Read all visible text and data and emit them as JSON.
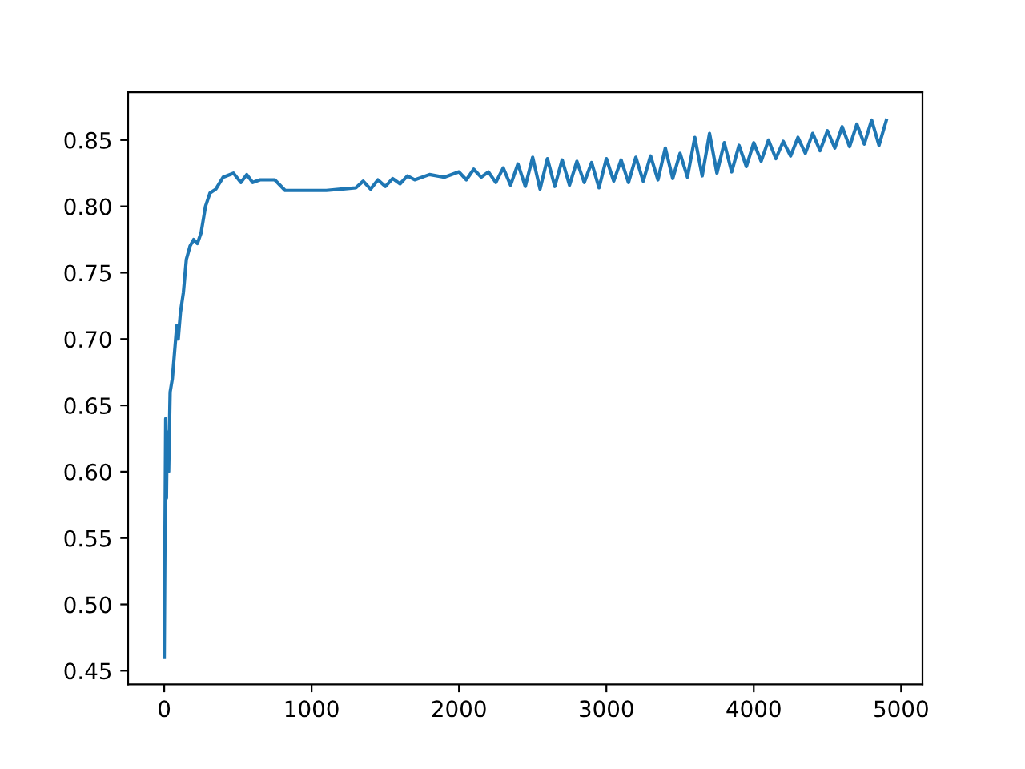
{
  "chart_data": {
    "type": "line",
    "series": [
      {
        "color": "#1f77b4",
        "x": [
          0,
          5,
          10,
          15,
          20,
          30,
          40,
          55,
          70,
          85,
          95,
          110,
          130,
          150,
          175,
          200,
          225,
          250,
          280,
          310,
          350,
          400,
          470,
          520,
          560,
          600,
          650,
          750,
          820,
          1000,
          1100,
          1200,
          1300,
          1350,
          1400,
          1450,
          1500,
          1550,
          1600,
          1650,
          1700,
          1800,
          1900,
          2000,
          2050,
          2100,
          2150,
          2200,
          2250,
          2300,
          2350,
          2400,
          2450,
          2500,
          2550,
          2600,
          2650,
          2700,
          2750,
          2800,
          2850,
          2900,
          2950,
          3000,
          3050,
          3100,
          3150,
          3200,
          3250,
          3300,
          3350,
          3400,
          3450,
          3500,
          3550,
          3600,
          3650,
          3700,
          3750,
          3800,
          3850,
          3900,
          3950,
          4000,
          4050,
          4100,
          4150,
          4200,
          4250,
          4300,
          4350,
          4400,
          4450,
          4500,
          4550,
          4600,
          4650,
          4700,
          4750,
          4800,
          4850,
          4900
        ],
        "values": [
          0.46,
          0.55,
          0.64,
          0.58,
          0.63,
          0.6,
          0.66,
          0.67,
          0.69,
          0.71,
          0.7,
          0.72,
          0.735,
          0.76,
          0.77,
          0.775,
          0.772,
          0.78,
          0.8,
          0.81,
          0.813,
          0.822,
          0.825,
          0.818,
          0.824,
          0.818,
          0.82,
          0.82,
          0.812,
          0.812,
          0.812,
          0.813,
          0.814,
          0.819,
          0.813,
          0.82,
          0.815,
          0.821,
          0.817,
          0.823,
          0.82,
          0.824,
          0.822,
          0.826,
          0.82,
          0.828,
          0.822,
          0.826,
          0.818,
          0.829,
          0.816,
          0.832,
          0.815,
          0.837,
          0.813,
          0.836,
          0.815,
          0.835,
          0.816,
          0.834,
          0.818,
          0.833,
          0.814,
          0.836,
          0.819,
          0.835,
          0.818,
          0.837,
          0.819,
          0.838,
          0.82,
          0.844,
          0.821,
          0.84,
          0.822,
          0.852,
          0.823,
          0.855,
          0.825,
          0.848,
          0.826,
          0.846,
          0.83,
          0.848,
          0.834,
          0.85,
          0.836,
          0.849,
          0.838,
          0.852,
          0.84,
          0.855,
          0.842,
          0.857,
          0.844,
          0.86,
          0.845,
          0.862,
          0.847,
          0.865,
          0.846,
          0.865
        ]
      }
    ],
    "xlim": [
      -245,
      5145
    ],
    "ylim": [
      0.4397,
      0.886
    ],
    "xticks": [
      0,
      1000,
      2000,
      3000,
      4000,
      5000
    ],
    "yticks": [
      {
        "value": 0.45,
        "label": "0.45"
      },
      {
        "value": 0.5,
        "label": "0.50"
      },
      {
        "value": 0.55,
        "label": "0.55"
      },
      {
        "value": 0.6,
        "label": "0.60"
      },
      {
        "value": 0.65,
        "label": "0.65"
      },
      {
        "value": 0.7,
        "label": "0.70"
      },
      {
        "value": 0.75,
        "label": "0.75"
      },
      {
        "value": 0.8,
        "label": "0.80"
      },
      {
        "value": 0.85,
        "label": "0.85"
      }
    ],
    "grid": false
  }
}
